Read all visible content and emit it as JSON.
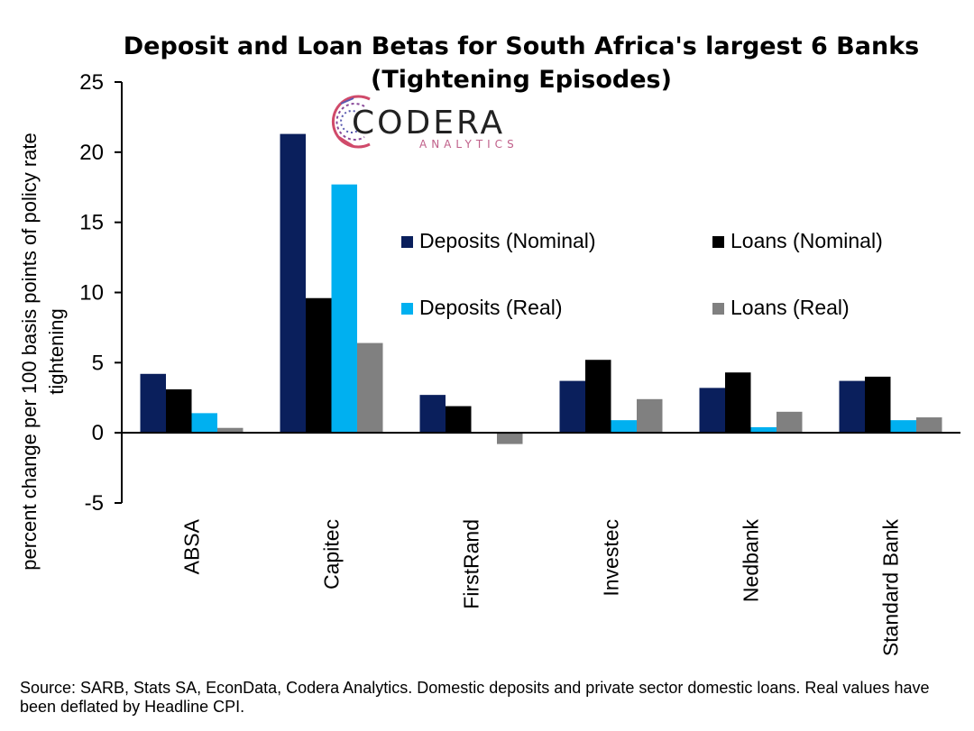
{
  "chart_data": {
    "type": "bar",
    "title_lines": [
      "Deposit and Loan Betas for South Africa's largest 6 Banks",
      "(Tightening Episodes)"
    ],
    "ylabel_lines": [
      "percent change per 100 basis points of policy rate",
      "tightening"
    ],
    "ylim": [
      -5,
      25
    ],
    "yticks": [
      "-5",
      "0",
      "5",
      "10",
      "15",
      "20",
      "25"
    ],
    "categories": [
      "ABSA",
      "Capitec",
      "FirstRand",
      "Investec",
      "Nedbank",
      "Standard Bank"
    ],
    "series": [
      {
        "name": "Deposits (Nominal)",
        "color": "#0a1f5c",
        "values": [
          4.2,
          21.3,
          2.7,
          3.7,
          3.2,
          3.7
        ]
      },
      {
        "name": "Loans (Nominal)",
        "color": "#000000",
        "values": [
          3.1,
          9.6,
          1.9,
          5.2,
          4.3,
          4.0
        ]
      },
      {
        "name": "Deposits (Real)",
        "color": "#00b0f0",
        "values": [
          1.4,
          17.7,
          0,
          0.9,
          0.4,
          0.9
        ]
      },
      {
        "name": "Loans (Real)",
        "color": "#808080",
        "values": [
          0.35,
          6.4,
          -0.8,
          2.4,
          1.5,
          1.1
        ]
      }
    ],
    "legend_placement": "center-right, inside plot, two columns",
    "grid": false
  },
  "logo": {
    "main": "CODERA",
    "sub": "ANALYTICS"
  },
  "source_text": "Source: SARB, Stats SA, EconData, Codera Analytics. Domestic deposits and private sector domestic loans. Real values have been deflated by Headline CPI."
}
